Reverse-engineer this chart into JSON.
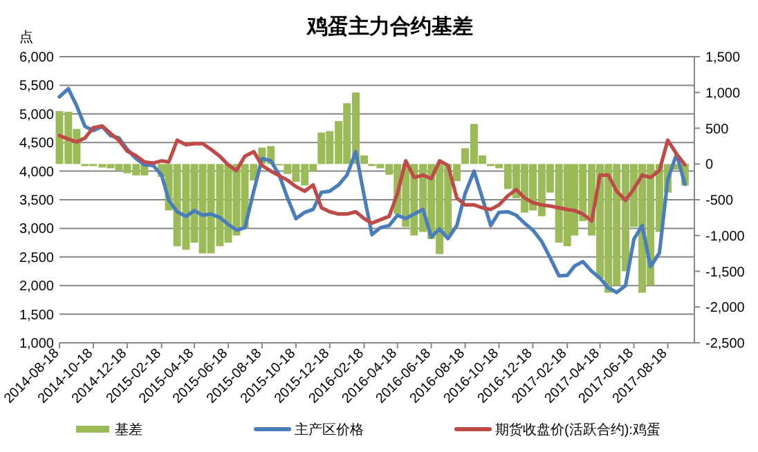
{
  "chart_data": {
    "type": "line",
    "title": "鸡蛋主力合约基差",
    "ylabel": "点",
    "x": [
      "2014-08-18",
      "2014-09-03",
      "2014-09-18",
      "2014-10-03",
      "2014-10-18",
      "2014-11-03",
      "2014-11-18",
      "2014-12-03",
      "2014-12-18",
      "2015-01-03",
      "2015-01-18",
      "2015-02-03",
      "2015-02-18",
      "2015-03-03",
      "2015-03-18",
      "2015-04-03",
      "2015-04-18",
      "2015-05-03",
      "2015-05-18",
      "2015-06-03",
      "2015-06-18",
      "2015-07-03",
      "2015-07-18",
      "2015-08-03",
      "2015-08-18",
      "2015-09-03",
      "2015-09-18",
      "2015-10-03",
      "2015-10-18",
      "2015-11-03",
      "2015-11-18",
      "2015-12-03",
      "2015-12-18",
      "2016-01-03",
      "2016-01-18",
      "2016-02-03",
      "2016-02-18",
      "2016-03-03",
      "2016-03-18",
      "2016-04-03",
      "2016-04-18",
      "2016-05-03",
      "2016-05-18",
      "2016-06-03",
      "2016-06-18",
      "2016-07-03",
      "2016-07-18",
      "2016-08-03",
      "2016-08-18",
      "2016-09-03",
      "2016-09-18",
      "2016-10-03",
      "2016-10-18",
      "2016-11-03",
      "2016-11-18",
      "2016-12-03",
      "2016-12-18",
      "2017-01-03",
      "2017-01-18",
      "2017-02-03",
      "2017-02-18",
      "2017-03-03",
      "2017-03-18",
      "2017-04-03",
      "2017-04-18",
      "2017-05-03",
      "2017-05-18",
      "2017-06-03",
      "2017-06-18",
      "2017-07-03",
      "2017-07-18",
      "2017-08-03",
      "2017-08-18",
      "2017-09-03",
      "2017-09-18"
    ],
    "series": [
      {
        "name": "基差",
        "type": "bar",
        "axis": "y2",
        "color": "#9bbb59",
        "values": [
          740,
          730,
          490,
          -30,
          -30,
          -50,
          -60,
          -90,
          -130,
          -160,
          -160,
          null,
          -180,
          -650,
          -1150,
          -1200,
          -1100,
          -1250,
          -1250,
          -1150,
          -1100,
          -1000,
          -900,
          -230,
          230,
          250,
          -20,
          -140,
          -250,
          -300,
          -100,
          440,
          460,
          600,
          850,
          1000,
          120,
          -30,
          -60,
          -150,
          -700,
          -880,
          -1000,
          -950,
          -1050,
          -1260,
          -1000,
          -240,
          220,
          560,
          120,
          -30,
          -60,
          -350,
          -480,
          -680,
          -650,
          -730,
          -400,
          -1100,
          -1150,
          -1000,
          -800,
          -1000,
          -1600,
          -1800,
          -1700,
          -1500,
          -880,
          -1800,
          -1700,
          -950,
          -400,
          -80,
          -300
        ]
      },
      {
        "name": "主产区价格",
        "color": "#4a7ebb",
        "values": [
          5300,
          5440,
          5140,
          4780,
          4710,
          4780,
          4620,
          4580,
          4380,
          4220,
          4110,
          4100,
          3930,
          3490,
          3290,
          3210,
          3310,
          3230,
          3250,
          3190,
          3070,
          2970,
          3010,
          3650,
          4220,
          4180,
          3930,
          3530,
          3170,
          3280,
          3330,
          3630,
          3650,
          3760,
          3930,
          4340,
          3570,
          2890,
          3010,
          3050,
          3230,
          3170,
          3250,
          3330,
          2850,
          2990,
          2820,
          3050,
          3610,
          4000,
          3530,
          3050,
          3280,
          3290,
          3230,
          3090,
          2970,
          2770,
          2490,
          2170,
          2180,
          2340,
          2420,
          2250,
          2130,
          1960,
          1880,
          2000,
          2810,
          3050,
          2330,
          2570,
          3850,
          4300,
          3770
        ]
      },
      {
        "name": "期货收盘价(活跃合约):鸡蛋",
        "color": "#be4b48",
        "values": [
          4620,
          4560,
          4510,
          4580,
          4760,
          4790,
          4660,
          4540,
          4350,
          4270,
          4160,
          4140,
          4180,
          4160,
          4540,
          4460,
          4480,
          4480,
          4380,
          4260,
          4110,
          4010,
          4260,
          4340,
          4100,
          4000,
          3920,
          3840,
          3730,
          3650,
          3760,
          3360,
          3290,
          3250,
          3250,
          3290,
          3170,
          3090,
          3150,
          3210,
          3610,
          4180,
          3890,
          3930,
          3870,
          4180,
          4100,
          3530,
          3410,
          3410,
          3360,
          3330,
          3410,
          3570,
          3680,
          3530,
          3450,
          3410,
          3390,
          3360,
          3330,
          3310,
          3250,
          3130,
          3930,
          3930,
          3650,
          3490,
          3690,
          3930,
          3890,
          4010,
          4540,
          4300,
          4110
        ]
      }
    ],
    "xlim": [
      "2014-08-18",
      "2017-10-05"
    ],
    "xticks": [
      {
        "value": "2014-08-18",
        "label": "2014-08-18"
      },
      {
        "value": "2014-10-18",
        "label": "2014-10-18"
      },
      {
        "value": "2014-12-18",
        "label": "2014-12-18"
      },
      {
        "value": "2015-02-18",
        "label": "2015-02-18"
      },
      {
        "value": "2015-04-18",
        "label": "2015-04-18"
      },
      {
        "value": "2015-06-18",
        "label": "2015-06-18"
      },
      {
        "value": "2015-08-18",
        "label": "2015-08-18"
      },
      {
        "value": "2015-10-18",
        "label": "2015-10-18"
      },
      {
        "value": "2015-12-18",
        "label": "2015-12-18"
      },
      {
        "value": "2016-02-18",
        "label": "2016-02-18"
      },
      {
        "value": "2016-04-18",
        "label": "2016-04-18"
      },
      {
        "value": "2016-06-18",
        "label": "2016-06-18"
      },
      {
        "value": "2016-08-18",
        "label": "2016-08-18"
      },
      {
        "value": "2016-10-18",
        "label": "2016-10-18"
      },
      {
        "value": "2016-12-18",
        "label": "2016-12-18"
      },
      {
        "value": "2017-02-18",
        "label": "2017-02-18"
      },
      {
        "value": "2017-04-18",
        "label": "2017-04-18"
      },
      {
        "value": "2017-06-18",
        "label": "2017-06-18"
      },
      {
        "value": "2017-08-18",
        "label": "2017-08-18"
      }
    ],
    "ylim": [
      1000,
      6000
    ],
    "yticks": [
      {
        "value": 1000,
        "label": "1,000"
      },
      {
        "value": 1500,
        "label": "1,500"
      },
      {
        "value": 2000,
        "label": "2,000"
      },
      {
        "value": 2500,
        "label": "2,500"
      },
      {
        "value": 3000,
        "label": "3,000"
      },
      {
        "value": 3500,
        "label": "3,500"
      },
      {
        "value": 4000,
        "label": "4,000"
      },
      {
        "value": 4500,
        "label": "4,500"
      },
      {
        "value": 5000,
        "label": "5,000"
      },
      {
        "value": 5500,
        "label": "5,500"
      },
      {
        "value": 6000,
        "label": "6,000"
      }
    ],
    "y2lim": [
      -2500,
      1500
    ],
    "y2ticks": [
      {
        "value": -2500,
        "label": "-2,500"
      },
      {
        "value": -2000,
        "label": "-2,000"
      },
      {
        "value": -1500,
        "label": "-1,500"
      },
      {
        "value": -1000,
        "label": "-1,000"
      },
      {
        "value": -500,
        "label": "-500"
      },
      0,
      500,
      {
        "value": 1000,
        "label": "1,000"
      },
      {
        "value": 1500,
        "label": "1,500"
      }
    ],
    "grid": "y",
    "legend": "bottom",
    "line_style": "solid",
    "marker": "none"
  }
}
